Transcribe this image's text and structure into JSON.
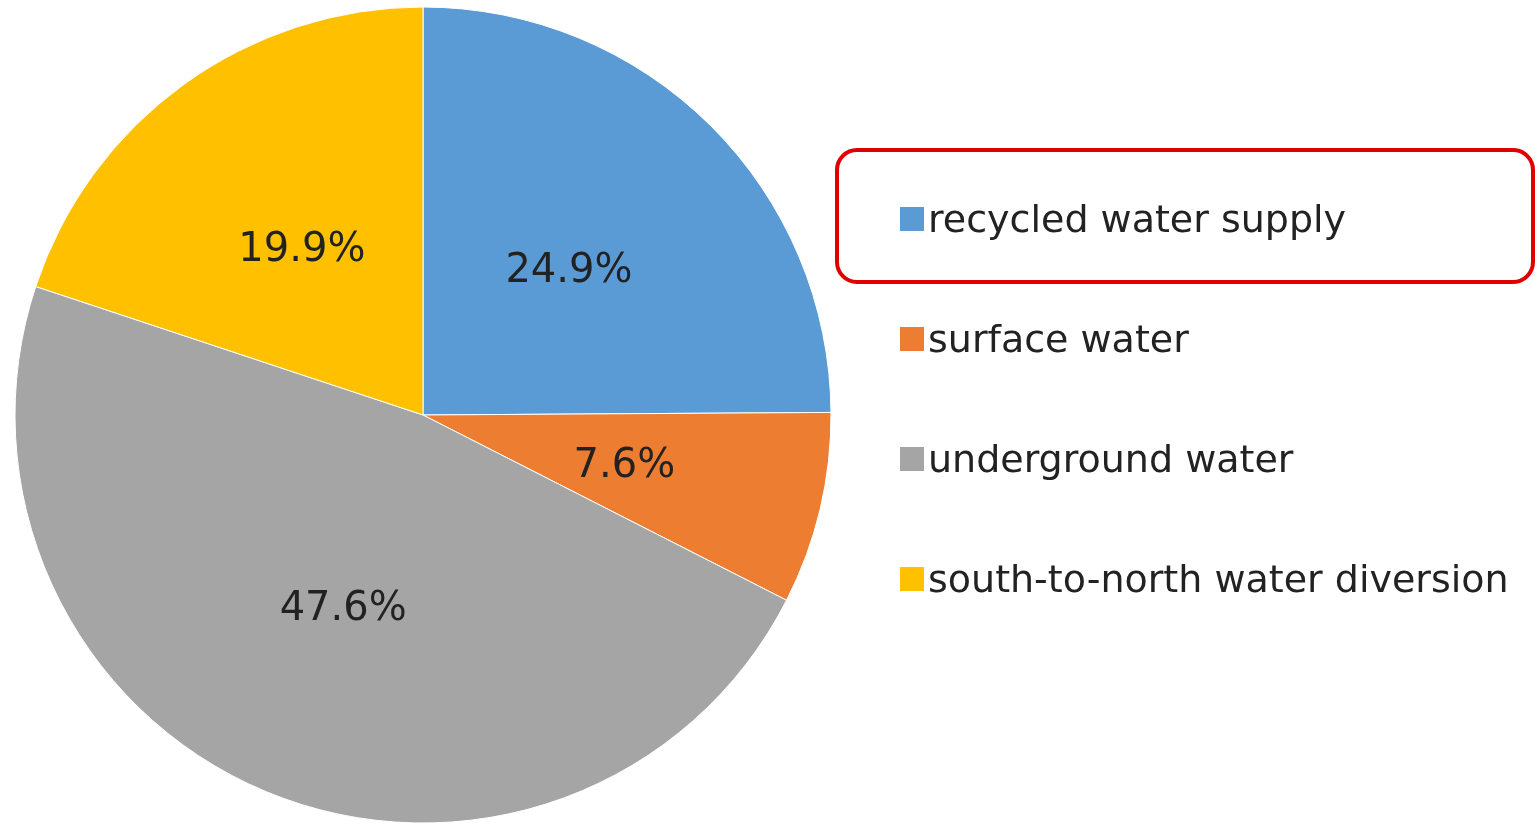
{
  "chart_data": {
    "type": "pie",
    "categories": [
      "recycled water supply",
      "surface water",
      "underground water",
      "south-to-north water diversion"
    ],
    "values": [
      24.9,
      7.6,
      47.6,
      19.9
    ],
    "colors": [
      "#5b9bd5",
      "#ed7d31",
      "#a5a5a5",
      "#ffc000"
    ],
    "value_labels": [
      "24.9%",
      "7.6%",
      "47.6%",
      "19.9%"
    ],
    "legend": "right"
  }
}
